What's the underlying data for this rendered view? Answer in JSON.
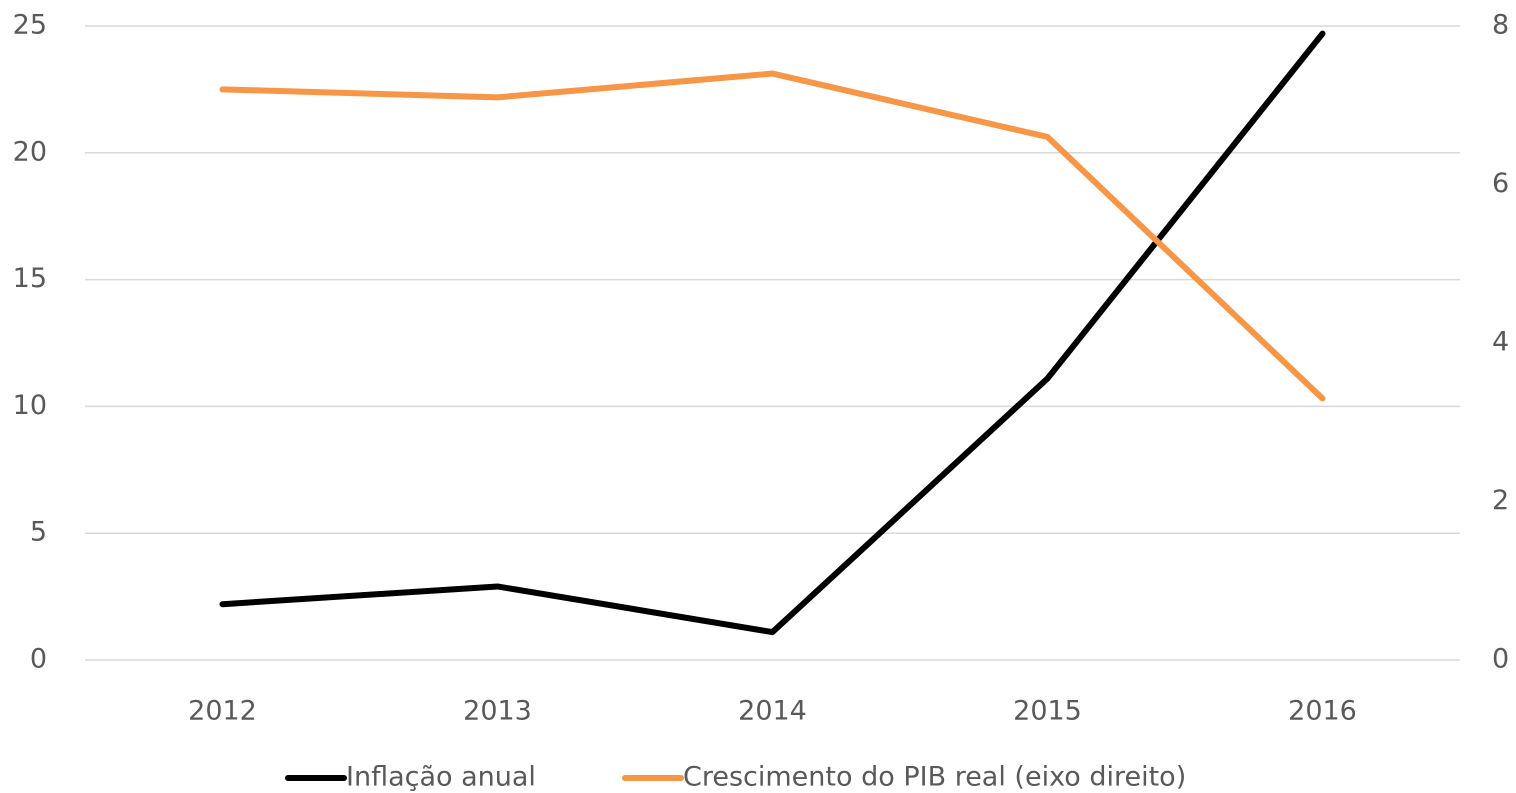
{
  "chart_data": {
    "type": "line",
    "categories": [
      "2012",
      "2013",
      "2014",
      "2015",
      "2016"
    ],
    "series": [
      {
        "name": "Inflação anual",
        "color": "#000000",
        "values": [
          2.2,
          2.9,
          1.1,
          11.1,
          24.7
        ]
      },
      {
        "name": "Crescimento do PIB real (eixo direito)",
        "color": "#f79646",
        "axis": "y2",
        "values": [
          7.2,
          7.1,
          7.4,
          6.6,
          3.3
        ]
      }
    ],
    "ylim": [
      0,
      25
    ],
    "yticks": [
      0,
      5,
      10,
      15,
      20,
      25
    ],
    "y2lim": [
      0,
      8
    ],
    "y2ticks": [
      0,
      2,
      4,
      6,
      8
    ],
    "grid": true,
    "legend": "bottom"
  }
}
